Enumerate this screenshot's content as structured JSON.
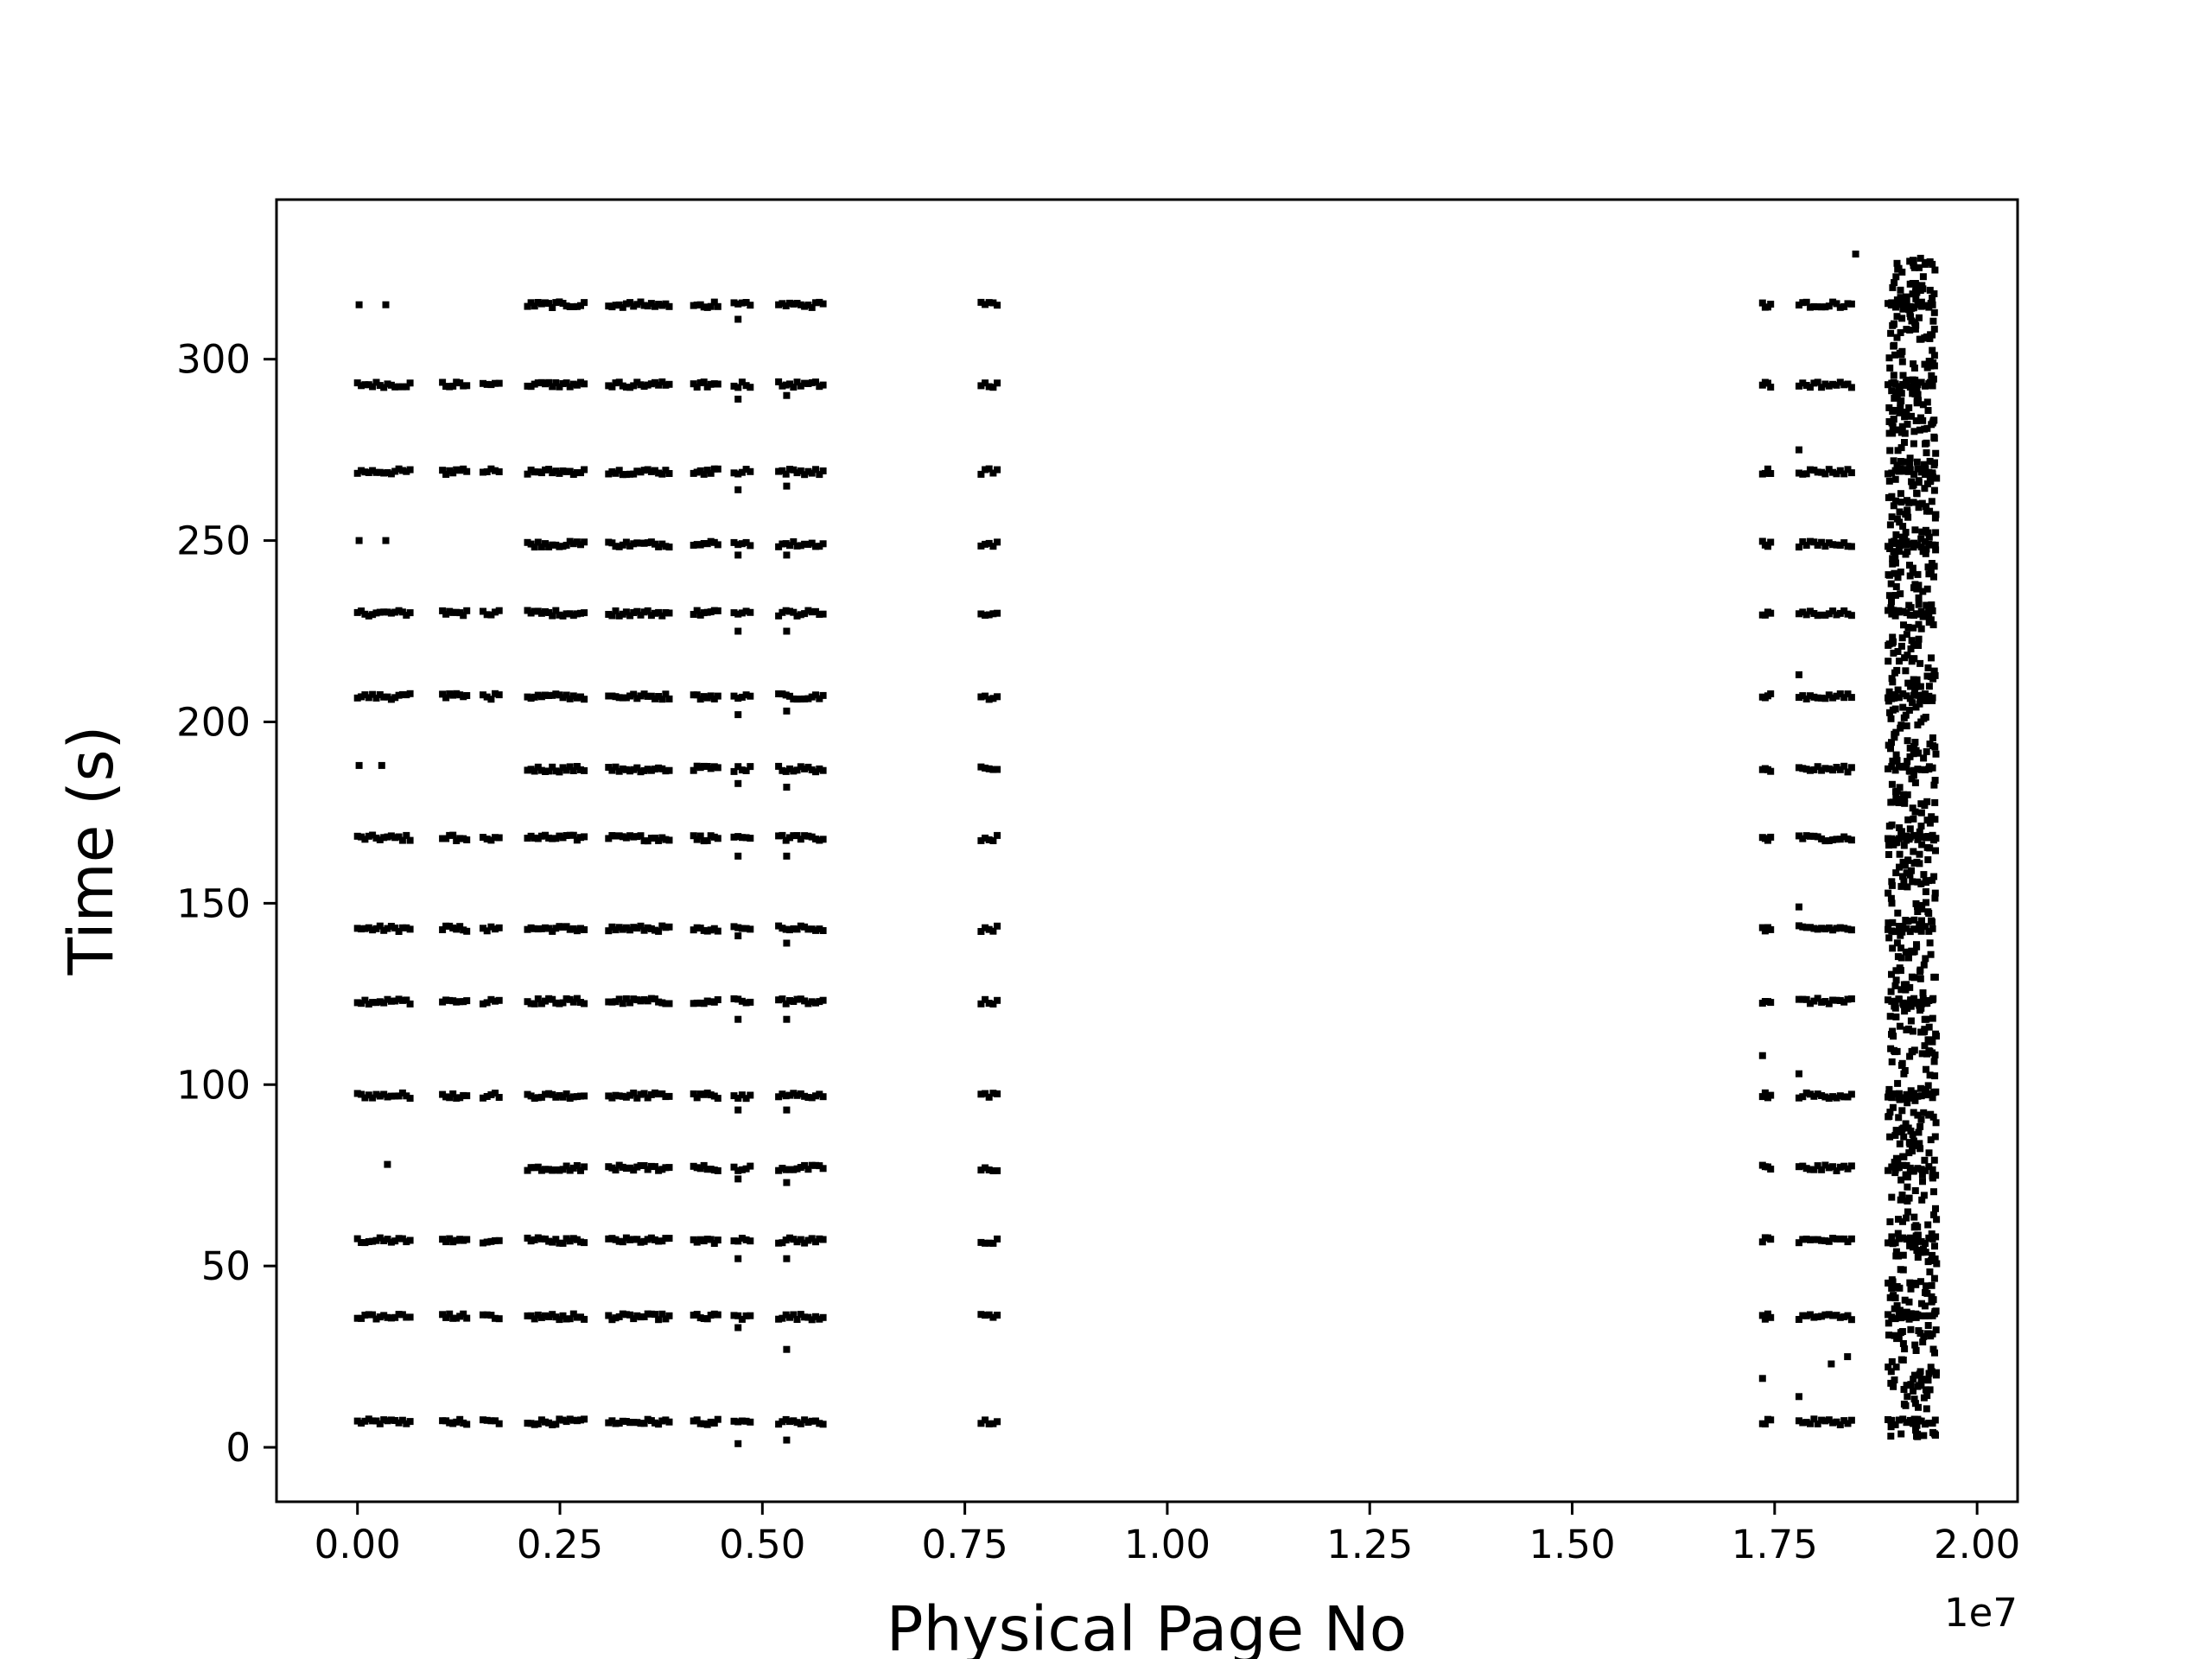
{
  "chart_data": {
    "type": "scatter",
    "title": "",
    "xlabel": "Physical Page No",
    "ylabel": "Time (s)",
    "x_offset_label": "1e7",
    "x_unit_scale": 10000000,
    "xlim": [
      -0.1,
      2.05
    ],
    "ylim": [
      -15,
      344
    ],
    "x_ticks": [
      {
        "value": 0.0,
        "label": "0.00"
      },
      {
        "value": 0.25,
        "label": "0.25"
      },
      {
        "value": 0.5,
        "label": "0.50"
      },
      {
        "value": 0.75,
        "label": "0.75"
      },
      {
        "value": 1.0,
        "label": "1.00"
      },
      {
        "value": 1.25,
        "label": "1.25"
      },
      {
        "value": 1.5,
        "label": "1.50"
      },
      {
        "value": 1.75,
        "label": "1.75"
      },
      {
        "value": 2.0,
        "label": "2.00"
      }
    ],
    "y_ticks": [
      {
        "value": 0,
        "label": "0"
      },
      {
        "value": 50,
        "label": "50"
      },
      {
        "value": 100,
        "label": "100"
      },
      {
        "value": 150,
        "label": "150"
      },
      {
        "value": 200,
        "label": "200"
      },
      {
        "value": 250,
        "label": "250"
      },
      {
        "value": 300,
        "label": "300"
      }
    ],
    "grid": false,
    "legend": "none",
    "marker_color": "#000000",
    "access_bursts_s": [
      7,
      36,
      57,
      77,
      97,
      123,
      143,
      168,
      187,
      207,
      230,
      249,
      269,
      293,
      315
    ],
    "full_bursts_s": [
      7,
      36,
      57,
      97,
      123,
      143,
      168,
      207,
      230,
      269,
      293
    ],
    "page_clusters_1e7": [
      {
        "range": [
          0.0,
          0.065
        ],
        "bursts": "full"
      },
      {
        "range": [
          0.105,
          0.135
        ],
        "bursts": "full"
      },
      {
        "range": [
          0.155,
          0.175
        ],
        "bursts": "full"
      },
      {
        "range": [
          0.21,
          0.28
        ],
        "bursts": "all"
      },
      {
        "range": [
          0.31,
          0.385
        ],
        "bursts": "all"
      },
      {
        "range": [
          0.415,
          0.445
        ],
        "bursts": "all"
      },
      {
        "range": [
          0.465,
          0.485
        ],
        "bursts": "all"
      },
      {
        "range": [
          0.52,
          0.575
        ],
        "bursts": "all"
      },
      {
        "range": [
          0.77,
          0.79
        ],
        "bursts": "all"
      },
      {
        "range": [
          1.735,
          1.745
        ],
        "bursts": "all"
      },
      {
        "range": [
          1.78,
          1.845
        ],
        "bursts": "all"
      },
      {
        "range": [
          1.89,
          1.945
        ],
        "bursts": "all"
      }
    ],
    "sparse_points": [
      {
        "x": 0.002,
        "y": 315
      },
      {
        "x": 0.035,
        "y": 315
      },
      {
        "x": 0.002,
        "y": 250
      },
      {
        "x": 0.035,
        "y": 250
      },
      {
        "x": 0.002,
        "y": 188
      },
      {
        "x": 0.03,
        "y": 188
      },
      {
        "x": 0.037,
        "y": 78
      },
      {
        "x": 0.47,
        "y": 1
      },
      {
        "x": 0.47,
        "y": 33
      },
      {
        "x": 0.47,
        "y": 52
      },
      {
        "x": 0.47,
        "y": 74
      },
      {
        "x": 0.47,
        "y": 93
      },
      {
        "x": 0.47,
        "y": 118
      },
      {
        "x": 0.47,
        "y": 141
      },
      {
        "x": 0.47,
        "y": 163
      },
      {
        "x": 0.47,
        "y": 183
      },
      {
        "x": 0.47,
        "y": 202
      },
      {
        "x": 0.47,
        "y": 225
      },
      {
        "x": 0.47,
        "y": 246
      },
      {
        "x": 0.47,
        "y": 264
      },
      {
        "x": 0.47,
        "y": 289
      },
      {
        "x": 0.47,
        "y": 311
      },
      {
        "x": 0.53,
        "y": 2
      },
      {
        "x": 0.53,
        "y": 27
      },
      {
        "x": 0.53,
        "y": 52
      },
      {
        "x": 0.53,
        "y": 73
      },
      {
        "x": 0.53,
        "y": 93
      },
      {
        "x": 0.53,
        "y": 118
      },
      {
        "x": 0.53,
        "y": 139
      },
      {
        "x": 0.53,
        "y": 163
      },
      {
        "x": 0.53,
        "y": 182
      },
      {
        "x": 0.53,
        "y": 203
      },
      {
        "x": 0.53,
        "y": 225
      },
      {
        "x": 0.53,
        "y": 246
      },
      {
        "x": 0.53,
        "y": 265
      },
      {
        "x": 0.53,
        "y": 290
      },
      {
        "x": 1.735,
        "y": 19
      },
      {
        "x": 1.735,
        "y": 108
      },
      {
        "x": 1.78,
        "y": 14
      },
      {
        "x": 1.82,
        "y": 23
      },
      {
        "x": 1.84,
        "y": 25
      },
      {
        "x": 1.78,
        "y": 103
      },
      {
        "x": 1.78,
        "y": 149
      },
      {
        "x": 1.78,
        "y": 213
      },
      {
        "x": 1.78,
        "y": 275
      },
      {
        "x": 1.85,
        "y": 329
      }
    ],
    "dense_region_1e7": {
      "range": [
        1.89,
        1.95
      ],
      "y_range": [
        2,
        328
      ],
      "description_note": ""
    }
  }
}
